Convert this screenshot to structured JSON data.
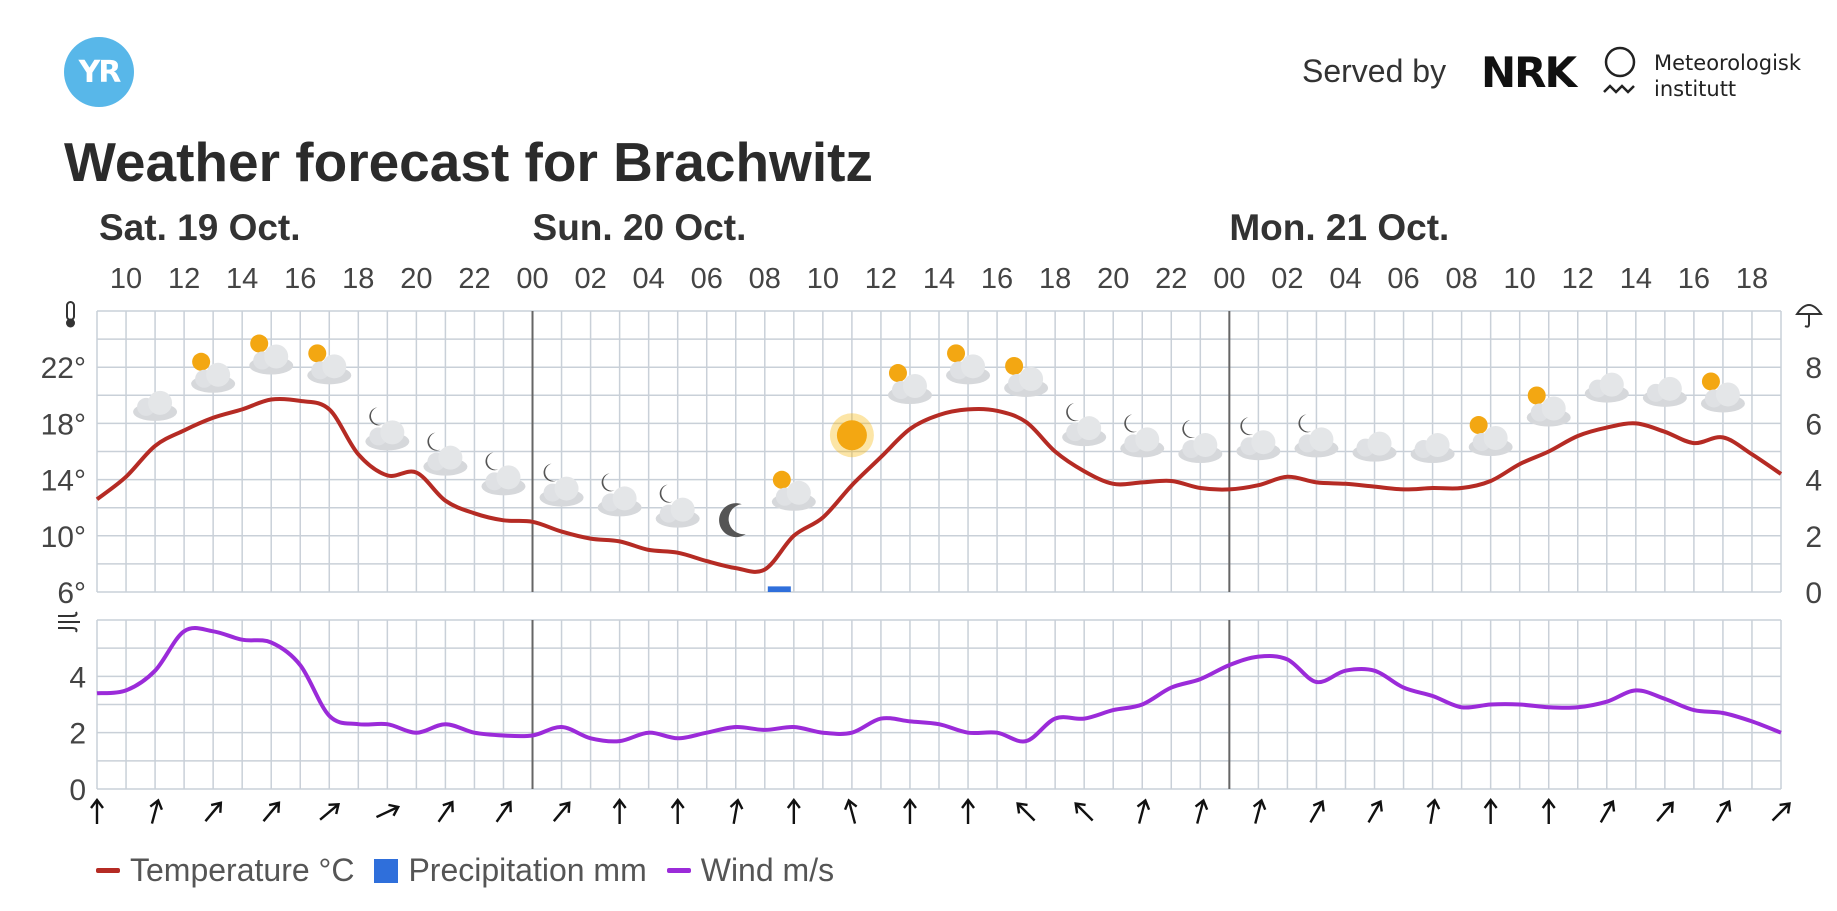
{
  "header": {
    "logo_text": "YR",
    "served_by": "Served by",
    "nrk_label": "NRK",
    "met_line1": "Meteorologisk",
    "met_line2": "institutt",
    "title": "Weather forecast for Brachwitz"
  },
  "legend": [
    {
      "label": "Temperature °C",
      "color": "#b52b24",
      "kind": "line"
    },
    {
      "label": "Precipitation mm",
      "color": "#2f6fdb",
      "kind": "box"
    },
    {
      "label": "Wind m/s",
      "color": "#9b2bd9",
      "kind": "line"
    }
  ],
  "chart_data": {
    "type": "line",
    "start_hour": 9,
    "hours": 58,
    "days": [
      {
        "label": "Sat. 19 Oct.",
        "start_offset": 0
      },
      {
        "label": "Sun. 20 Oct.",
        "start_offset": 15
      },
      {
        "label": "Mon. 21 Oct.",
        "start_offset": 39
      }
    ],
    "hour_labels": [
      "10",
      "12",
      "14",
      "16",
      "18",
      "20",
      "22",
      "00",
      "02",
      "04",
      "06",
      "08",
      "10",
      "12",
      "14",
      "16",
      "18",
      "20",
      "22",
      "00",
      "02",
      "04",
      "06",
      "08",
      "10",
      "12",
      "14",
      "16",
      "18"
    ],
    "temperature": {
      "name": "Temperature °C",
      "unit": "°C",
      "color": "#b52b24",
      "y_ticks": [
        "6°",
        "10°",
        "14°",
        "18°",
        "22°"
      ],
      "ylim": [
        6,
        26
      ],
      "values": [
        12.6,
        14.2,
        16.4,
        17.5,
        18.4,
        19.0,
        19.7,
        19.6,
        19.0,
        15.8,
        14.3,
        14.5,
        12.5,
        11.6,
        11.1,
        11.0,
        10.3,
        9.8,
        9.6,
        9.0,
        8.8,
        8.2,
        7.7,
        7.6,
        10.0,
        11.3,
        13.6,
        15.6,
        17.6,
        18.6,
        19.0,
        18.9,
        18.1,
        16.0,
        14.6,
        13.7,
        13.8,
        13.9,
        13.4,
        13.3,
        13.6,
        14.2,
        13.8,
        13.7,
        13.5,
        13.3,
        13.4,
        13.4,
        13.9,
        15.1,
        16.0,
        17.1,
        17.7,
        18.0,
        17.4,
        16.6,
        17.0,
        15.8,
        14.4
      ]
    },
    "precipitation": {
      "name": "Precipitation mm",
      "unit": "mm",
      "color": "#2f6fdb",
      "y_ticks": [
        "0",
        "2",
        "4",
        "6",
        "8"
      ],
      "ylim": [
        0,
        10
      ],
      "values": [
        {
          "offset": 23,
          "value": 0.2
        }
      ]
    },
    "wind": {
      "name": "Wind m/s",
      "unit": "m/s",
      "color": "#9b2bd9",
      "y_ticks": [
        "0",
        "2",
        "4"
      ],
      "ylim": [
        0,
        6
      ],
      "values": [
        3.4,
        3.5,
        4.2,
        5.6,
        5.6,
        5.3,
        5.2,
        4.4,
        2.6,
        2.3,
        2.3,
        2.0,
        2.3,
        2.0,
        1.9,
        1.9,
        2.2,
        1.8,
        1.7,
        2.0,
        1.8,
        2.0,
        2.2,
        2.1,
        2.2,
        2.0,
        2.0,
        2.5,
        2.4,
        2.3,
        2.0,
        2.0,
        1.7,
        2.5,
        2.5,
        2.8,
        3.0,
        3.6,
        3.9,
        4.4,
        4.7,
        4.6,
        3.8,
        4.2,
        4.2,
        3.6,
        3.3,
        2.9,
        3.0,
        3.0,
        2.9,
        2.9,
        3.1,
        3.5,
        3.2,
        2.8,
        2.7,
        2.4,
        2.0
      ]
    },
    "weather_icons": [
      "cloudy",
      "partly-sunny",
      "partly-sunny",
      "partly-sunny",
      "partly-night",
      "partly-night",
      "partly-night",
      "partly-night",
      "partly-night",
      "partly-night",
      "night-clear",
      "partly-sunny",
      "sunny",
      "partly-sunny",
      "partly-sunny",
      "partly-sunny",
      "partly-night",
      "partly-night",
      "partly-night",
      "partly-night",
      "partly-night",
      "cloudy",
      "cloudy",
      "partly-sunny",
      "partly-sunny",
      "cloudy",
      "cloudy",
      "partly-sunny"
    ],
    "wind_directions_deg": [
      0,
      15,
      40,
      40,
      50,
      65,
      35,
      35,
      40,
      0,
      0,
      10,
      0,
      -15,
      0,
      0,
      -45,
      -45,
      15,
      15,
      15,
      30,
      30,
      10,
      0,
      0,
      30,
      40,
      30,
      45
    ],
    "icons": {
      "temperature": "thermometer-icon",
      "precipitation": "umbrella-icon",
      "wind": "wind-icon"
    },
    "grid": true
  }
}
